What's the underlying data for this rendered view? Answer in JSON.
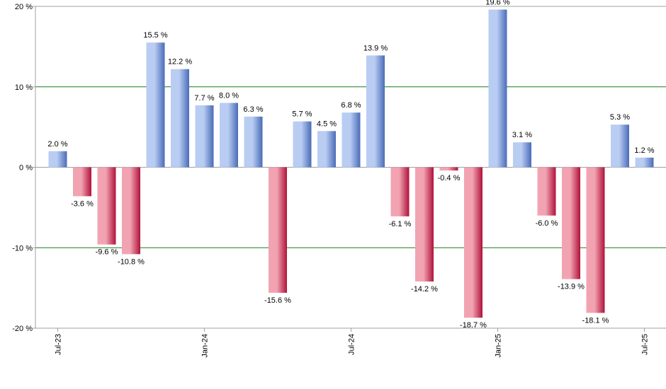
{
  "chart_data": {
    "type": "bar",
    "title": "",
    "xlabel": "",
    "ylabel": "",
    "ylim": [
      -20,
      20
    ],
    "yticks": [
      20,
      10,
      0,
      -10,
      -20
    ],
    "ytick_labels": [
      "20 %",
      "10 %",
      "0 %",
      "-10 %",
      "-20 %"
    ],
    "xtick_labels": [
      {
        "label": "Jul-23",
        "index": 0
      },
      {
        "label": "Jan-24",
        "index": 6
      },
      {
        "label": "Jul-24",
        "index": 12
      },
      {
        "label": "Jan-25",
        "index": 18
      },
      {
        "label": "Jul-25",
        "index": 24
      }
    ],
    "categories": [
      "Jul-23",
      "Aug-23",
      "Sep-23",
      "Oct-23",
      "Nov-23",
      "Dec-23",
      "Jan-24",
      "Feb-24",
      "Mar-24",
      "Apr-24",
      "May-24",
      "Jun-24",
      "Jul-24",
      "Aug-24",
      "Sep-24",
      "Oct-24",
      "Nov-24",
      "Dec-24",
      "Jan-25",
      "Feb-25",
      "Mar-25",
      "Apr-25",
      "May-25",
      "Jun-25",
      "Jul-25"
    ],
    "values": [
      2.0,
      -3.6,
      -9.6,
      -10.8,
      15.5,
      12.2,
      7.7,
      8.0,
      6.3,
      -15.6,
      5.7,
      4.5,
      6.8,
      13.9,
      -6.1,
      -14.2,
      -0.4,
      -18.7,
      19.6,
      3.1,
      -6.0,
      -13.9,
      -18.1,
      5.3,
      1.2
    ],
    "value_labels": [
      "2.0 %",
      "-3.6 %",
      "-9.6 %",
      "-10.8 %",
      "15.5 %",
      "12.2 %",
      "7.7 %",
      "8.0 %",
      "6.3 %",
      "-15.6 %",
      "5.7 %",
      "4.5 %",
      "6.8 %",
      "13.9 %",
      "-6.1 %",
      "-14.2 %",
      "-0.4 %",
      "-18.7 %",
      "19.6 %",
      "3.1 %",
      "-6.0 %",
      "-13.9 %",
      "-18.1 %",
      "5.3 %",
      "1.2 %"
    ],
    "grid_lines": [
      10,
      -10
    ],
    "colors": {
      "positive_light": "#b9cdf3",
      "positive_dark": "#4a6cb8",
      "negative_light": "#f2a3b2",
      "negative_dark": "#b0123a",
      "grid": "#1a7a1a",
      "axis": "#a0a0a0"
    }
  }
}
